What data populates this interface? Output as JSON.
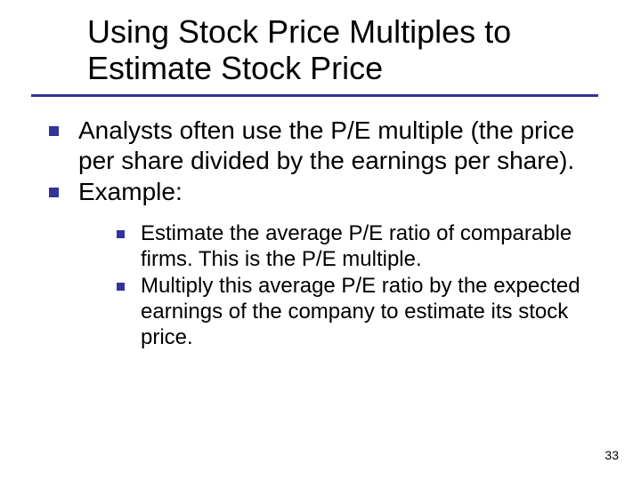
{
  "slide": {
    "title": "Using Stock Price Multiples to Estimate Stock Price",
    "page_number": "33",
    "colors": {
      "bullet": "#333399",
      "underline": "#333399",
      "text": "#000000",
      "background": "#ffffff"
    },
    "typography": {
      "title_fontsize": 36,
      "level1_fontsize": 28,
      "level2_fontsize": 24,
      "font_family": "Verdana"
    },
    "bullets": [
      {
        "text": "Analysts often use the P/E multiple (the price per share divided by the earnings per share).",
        "children": []
      },
      {
        "text": "Example:",
        "children": [
          {
            "text": "Estimate the average P/E ratio of comparable firms. This is the P/E multiple."
          },
          {
            "text": "Multiply this average P/E ratio by the expected earnings of the company to estimate its stock price."
          }
        ]
      }
    ]
  }
}
